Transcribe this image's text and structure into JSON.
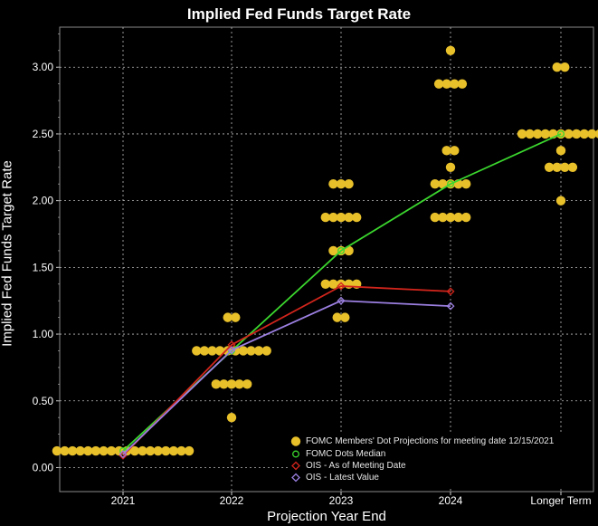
{
  "chart_data": {
    "type": "scatter",
    "title": "Implied Fed Funds Target Rate",
    "xlabel": "Projection Year End",
    "ylabel": "Implied Fed Funds Target Rate",
    "categories": [
      "2021",
      "2022",
      "2023",
      "2024",
      "Longer Term"
    ],
    "ylim": [
      -0.18,
      3.3
    ],
    "yticks": [
      "0.00",
      "0.50",
      "1.00",
      "1.50",
      "2.00",
      "2.50",
      "3.00"
    ],
    "ytick_values": [
      0,
      0.5,
      1.0,
      1.5,
      2.0,
      2.5,
      3.0
    ],
    "grid": true,
    "legend_position": "bottom-right",
    "colors": {
      "background": "#000000",
      "grid": "#bfbfbf",
      "dots": "#e8c02a",
      "median": "#3bd62e",
      "ois_meeting": "#d2251c",
      "ois_latest": "#9b7fe0",
      "text": "#ffffff"
    },
    "dot_projections": {
      "name": "FOMC Members' Dot Projections for meeting date 12/15/2021",
      "points": [
        {
          "x": "2021",
          "y": 0.125,
          "count": 18
        },
        {
          "x": "2022",
          "y": 1.125,
          "count": 2
        },
        {
          "x": "2022",
          "y": 0.875,
          "count": 10
        },
        {
          "x": "2022",
          "y": 0.625,
          "count": 5
        },
        {
          "x": "2022",
          "y": 0.375,
          "count": 1
        },
        {
          "x": "2023",
          "y": 2.125,
          "count": 3
        },
        {
          "x": "2023",
          "y": 1.875,
          "count": 5
        },
        {
          "x": "2023",
          "y": 1.625,
          "count": 3
        },
        {
          "x": "2023",
          "y": 1.375,
          "count": 5
        },
        {
          "x": "2023",
          "y": 1.125,
          "count": 2
        },
        {
          "x": "2024",
          "y": 3.125,
          "count": 1
        },
        {
          "x": "2024",
          "y": 2.875,
          "count": 4
        },
        {
          "x": "2024",
          "y": 2.375,
          "count": 2
        },
        {
          "x": "2024",
          "y": 2.25,
          "count": 1
        },
        {
          "x": "2024",
          "y": 2.125,
          "count": 5
        },
        {
          "x": "2024",
          "y": 1.875,
          "count": 5
        },
        {
          "x": "Longer Term",
          "y": 3.0,
          "count": 2
        },
        {
          "x": "Longer Term",
          "y": 2.5,
          "count": 11
        },
        {
          "x": "Longer Term",
          "y": 2.375,
          "count": 1
        },
        {
          "x": "Longer Term",
          "y": 2.25,
          "count": 4
        },
        {
          "x": "Longer Term",
          "y": 2.0,
          "count": 1
        }
      ]
    },
    "series": [
      {
        "name": "FOMC Dots Median",
        "marker": "circle",
        "points": [
          {
            "x": "2021",
            "y": 0.125
          },
          {
            "x": "2022",
            "y": 0.875
          },
          {
            "x": "2023",
            "y": 1.625
          },
          {
            "x": "2024",
            "y": 2.125
          },
          {
            "x": "Longer Term",
            "y": 2.5
          }
        ]
      },
      {
        "name": "OIS - As of Meeting Date",
        "marker": "diamond",
        "points": [
          {
            "x": "2021",
            "y": 0.09
          },
          {
            "x": "2022",
            "y": 0.92
          },
          {
            "x": "2023",
            "y": 1.36
          },
          {
            "x": "2024",
            "y": 1.32
          }
        ]
      },
      {
        "name": "OIS - Latest Value",
        "marker": "diamond",
        "points": [
          {
            "x": "2021",
            "y": 0.1
          },
          {
            "x": "2022",
            "y": 0.88
          },
          {
            "x": "2023",
            "y": 1.25
          },
          {
            "x": "2024",
            "y": 1.21
          }
        ]
      }
    ]
  }
}
